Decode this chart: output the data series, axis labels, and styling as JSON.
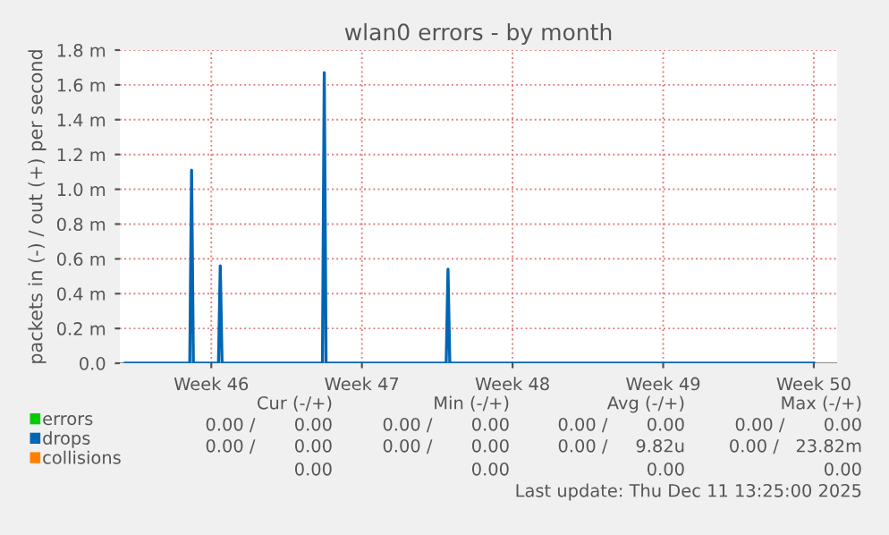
{
  "chart_data": {
    "type": "line",
    "title": "wlan0 errors - by month",
    "ylabel": "packets in (-) / out (+) per second",
    "xlim": [
      "2025-11-09T06:00",
      "2025-12-12T14:00"
    ],
    "xticks": [
      {
        "value": "2025-11-13T12:00",
        "label": "Week 46"
      },
      {
        "value": "2025-11-20T12:00",
        "label": "Week 47"
      },
      {
        "value": "2025-11-27T12:00",
        "label": "Week 48"
      },
      {
        "value": "2025-12-04T12:00",
        "label": "Week 49"
      },
      {
        "value": "2025-12-11T12:00",
        "label": "Week 50"
      }
    ],
    "ylim": [
      0,
      1.8
    ],
    "yticks": [
      {
        "value": 0,
        "label": "0.0"
      },
      {
        "value": 0.2,
        "label": "0.2 m"
      },
      {
        "value": 0.4,
        "label": "0.4 m"
      },
      {
        "value": 0.6,
        "label": "0.6 m"
      },
      {
        "value": 0.8,
        "label": "0.8 m"
      },
      {
        "value": 1.0,
        "label": "1.0 m"
      },
      {
        "value": 1.2,
        "label": "1.2 m"
      },
      {
        "value": 1.4,
        "label": "1.4 m"
      },
      {
        "value": 1.6,
        "label": "1.6 m"
      },
      {
        "value": 1.8,
        "label": "1.8 m"
      }
    ],
    "grid": true,
    "legend": "bottom",
    "series": [
      {
        "name": "errors",
        "color": "#00cc00"
      },
      {
        "name": "drops",
        "color": "#0066b3",
        "x": [
          "2025-11-09T12:00",
          "2025-11-12T12:00",
          "2025-11-12T14:00",
          "2025-11-12T16:00",
          "2025-11-13T20:00",
          "2025-11-13T22:00",
          "2025-11-14T00:00",
          "2025-11-18T16:00",
          "2025-11-18T18:00",
          "2025-11-18T20:00",
          "2025-11-24T10:00",
          "2025-11-24T12:00",
          "2025-11-24T14:00",
          "2025-12-11T12:00"
        ],
        "values": [
          0,
          0,
          1.11,
          0,
          0,
          0.56,
          0,
          0,
          1.67,
          0,
          0,
          0.54,
          0,
          0
        ]
      },
      {
        "name": "collisions",
        "color": "#ff8000"
      }
    ],
    "annotations": [
      "Cur (-/+)",
      "Min (-/+)",
      "Avg (-/+)",
      "Max (-/+)",
      "0.00 /       0.00",
      "0.00 /       0.00",
      "0.00 /       0.00",
      "0.00 /       0.00",
      "0.00 /       0.00",
      "0.00 /       0.00",
      "0.00 /     9.82u",
      "0.00 /   23.82m",
      "0.00",
      "0.00",
      "0.00",
      "0.00",
      "Last update: Thu Dec 11 13:25:00 2025"
    ]
  }
}
